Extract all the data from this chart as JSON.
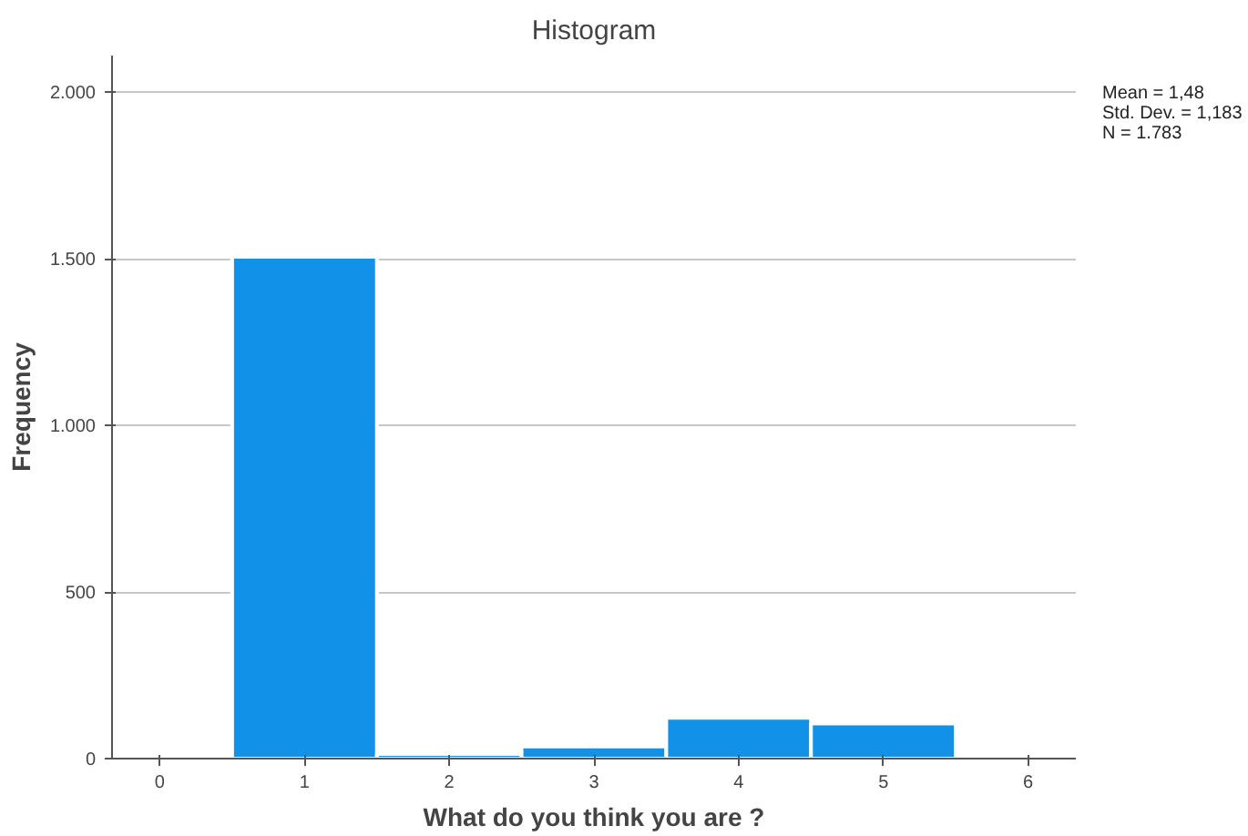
{
  "chart_data": {
    "type": "histogram",
    "title": "Histogram",
    "xlabel": "What do you think you are ?",
    "ylabel": "Frequency",
    "bins": [
      0.5,
      1.5,
      2.5,
      3.5,
      4.5,
      5.5
    ],
    "values": [
      1506,
      14,
      36,
      122,
      105
    ],
    "color": "#1192e8",
    "xlim": [
      -0.33,
      6.33
    ],
    "xticks": [
      0,
      1,
      2,
      3,
      4,
      5,
      6
    ],
    "ylim": [
      0,
      2110
    ],
    "yticks": [
      0,
      500,
      {
        "value": 1000,
        "label": "1.000"
      },
      {
        "value": 1500,
        "label": "1.500"
      },
      {
        "value": 2000,
        "label": "2.000"
      }
    ],
    "grid": "y",
    "annotations": [
      "Mean = 1,48",
      "Std. Dev. = 1,183",
      "N = 1.783"
    ]
  }
}
